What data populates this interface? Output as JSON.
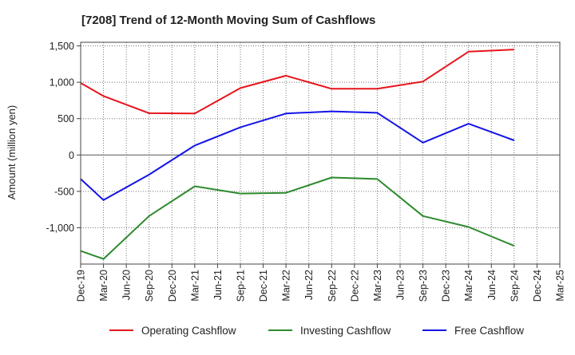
{
  "chart_data": {
    "type": "line",
    "title": "[7208]  Trend of 12-Month Moving Sum of Cashflows",
    "xlabel": "",
    "ylabel": "Amount (million yen)",
    "ylim": [
      -1500,
      1550
    ],
    "y_ticks": [
      1500,
      1000,
      500,
      0,
      -500,
      -1000
    ],
    "y_tick_labels": [
      "1,500",
      "1,000",
      "500",
      "0",
      "-500",
      "-1,000"
    ],
    "x": [
      "Dec-19",
      "Mar-20",
      "Jun-20",
      "Sep-20",
      "Dec-20",
      "Mar-21",
      "Jun-21",
      "Sep-21",
      "Dec-21",
      "Mar-22",
      "Jun-22",
      "Sep-22",
      "Dec-22",
      "Mar-23",
      "Jun-23",
      "Sep-23",
      "Dec-23",
      "Mar-24",
      "Jun-24",
      "Sep-24",
      "Dec-24",
      "Mar-25"
    ],
    "grid": true,
    "legend_position": "bottom",
    "series": [
      {
        "name": "Operating Cashflow",
        "color": "#e8141b",
        "values": [
          990,
          810,
          null,
          575,
          null,
          570,
          null,
          920,
          null,
          1090,
          null,
          910,
          null,
          910,
          null,
          1010,
          null,
          1420,
          null,
          1450,
          null,
          null
        ]
      },
      {
        "name": "Investing Cashflow",
        "color": "#2d8a2d",
        "values": [
          -1320,
          -1430,
          null,
          -840,
          null,
          -430,
          null,
          -530,
          null,
          -520,
          null,
          -310,
          null,
          -330,
          null,
          -840,
          null,
          -990,
          null,
          -1250,
          null,
          null
        ]
      },
      {
        "name": "Free Cashflow",
        "color": "#1414e6",
        "values": [
          -330,
          -620,
          null,
          -270,
          null,
          130,
          null,
          380,
          null,
          570,
          null,
          600,
          null,
          580,
          null,
          170,
          null,
          430,
          null,
          200,
          null,
          null
        ]
      }
    ]
  }
}
